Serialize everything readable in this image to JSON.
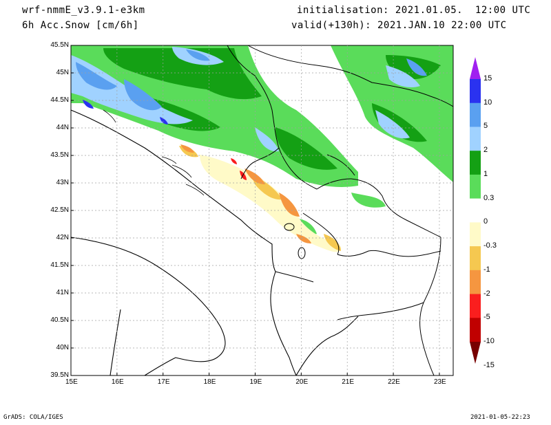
{
  "header": {
    "model": "wrf-nmmE_v3.9.1-e3km",
    "variable": "6h Acc.Snow [cm/6h]",
    "init": "initialisation: 2021.01.05.  12:00 UTC",
    "valid": "valid(+130h): 2021.JAN.10 22:00 UTC"
  },
  "map": {
    "lon_range": [
      15.0,
      23.3
    ],
    "lat_range": [
      39.5,
      45.5
    ],
    "lon_ticks": [
      "15E",
      "16E",
      "17E",
      "18E",
      "19E",
      "20E",
      "21E",
      "22E",
      "23E"
    ],
    "lat_ticks": [
      "45.5N",
      "45N",
      "44.5N",
      "44N",
      "43.5N",
      "43N",
      "42.5N",
      "42N",
      "41.5N",
      "41N",
      "40.5N",
      "40N",
      "39.5N"
    ],
    "gridlines": true
  },
  "colorbar": {
    "levels": [
      "15",
      "10",
      "5",
      "2",
      "1",
      "0.3",
      "0",
      "-0.3",
      "-1",
      "-2",
      "-5",
      "-10",
      "-15"
    ],
    "colors": [
      "#a020f0",
      "#2a32f0",
      "#5aa0f0",
      "#a0d2ff",
      "#14a014",
      "#5adc5a",
      "#ffffff",
      "#fffac8",
      "#f5c850",
      "#f59640",
      "#fa1e1e",
      "#c00000",
      "#780000"
    ]
  },
  "footer": {
    "left": "GrADS: COLA/IGES",
    "right": "2021-01-05-22:23"
  }
}
